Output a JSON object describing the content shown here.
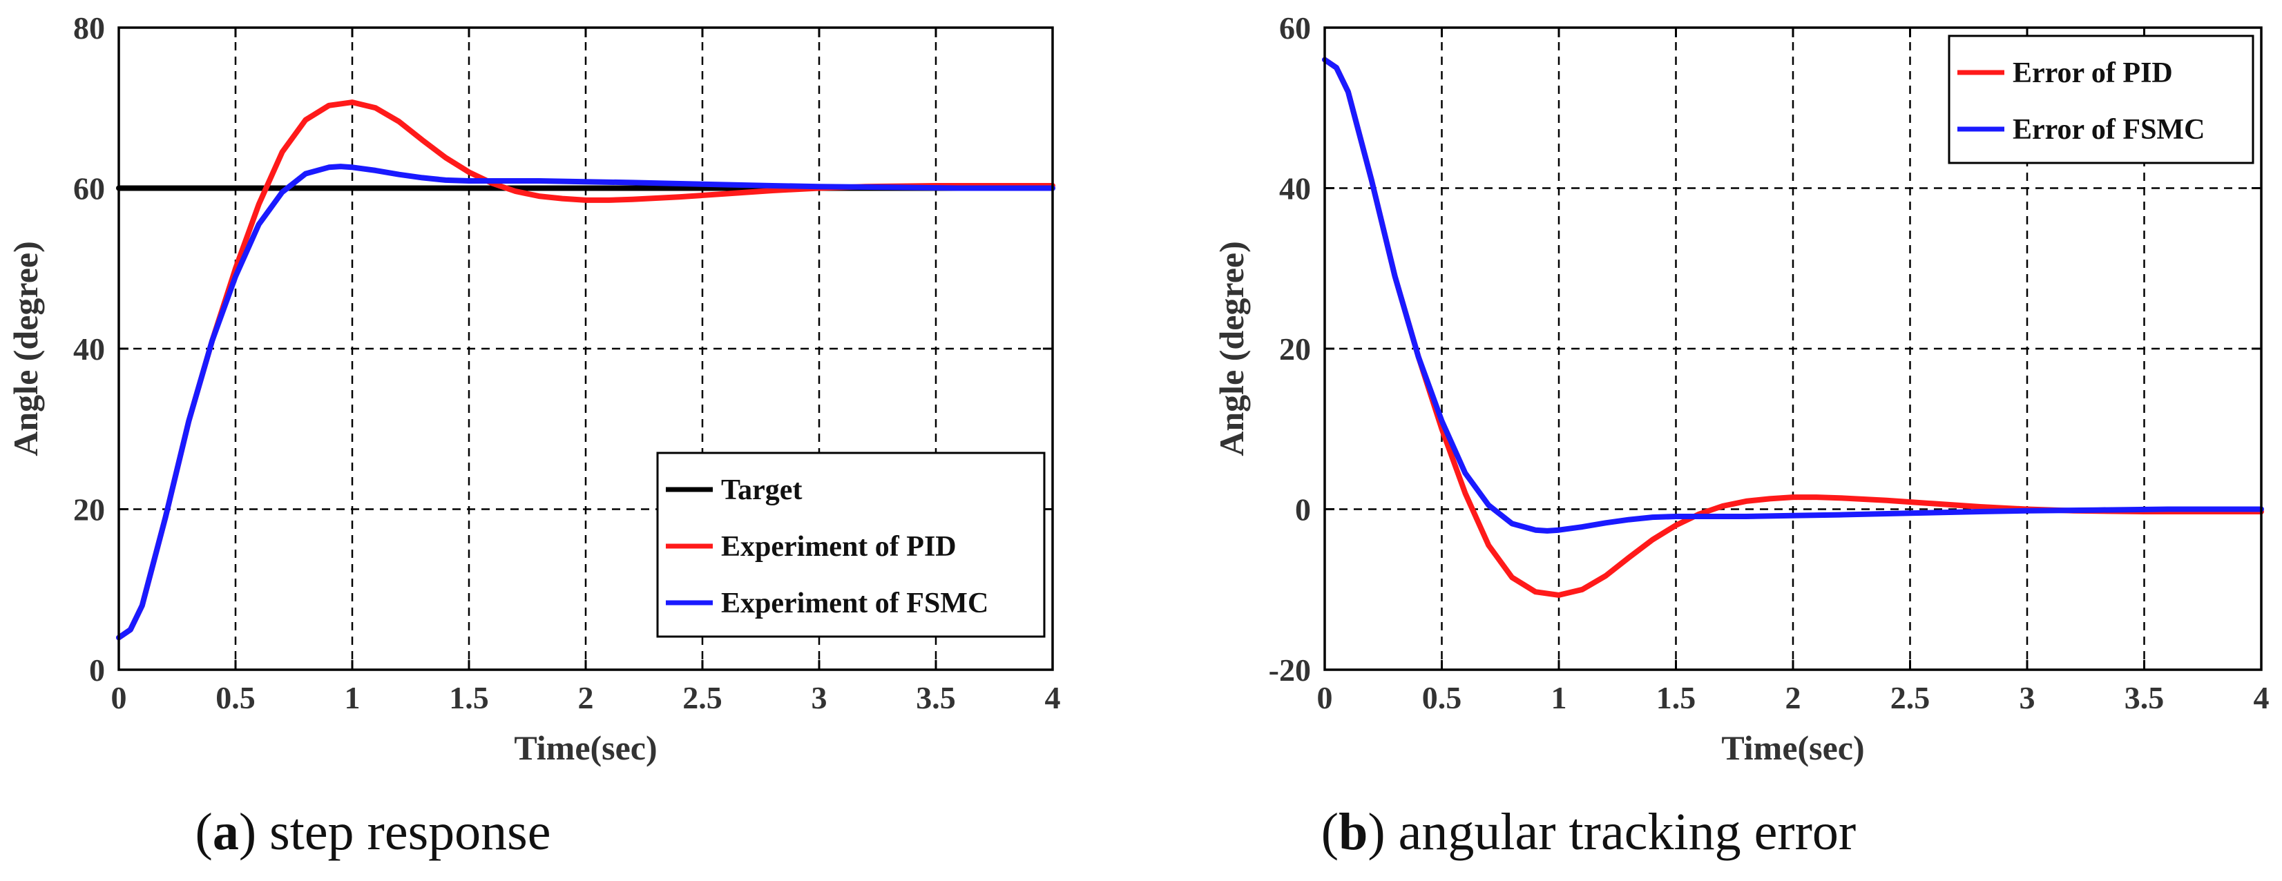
{
  "chart_data": [
    {
      "type": "line",
      "title": "",
      "xlabel": "Time(sec)",
      "ylabel": "Angle (degree)",
      "xlim": [
        0,
        4
      ],
      "ylim": [
        0,
        80
      ],
      "xticks": [
        0,
        0.5,
        1,
        1.5,
        2,
        2.5,
        3,
        3.5,
        4
      ],
      "xtick_labels": [
        "0",
        "0.5",
        "1",
        "1.5",
        "2",
        "2.5",
        "3",
        "3.5",
        "4"
      ],
      "yticks": [
        0,
        20,
        40,
        60,
        80
      ],
      "ytick_labels": [
        "0",
        "20",
        "40",
        "60",
        "80"
      ],
      "grid": true,
      "legend_position": "bottom-right",
      "series": [
        {
          "name": "Target",
          "color": "#000000",
          "x": [
            0,
            4
          ],
          "y": [
            60,
            60
          ]
        },
        {
          "name": "Experiment of PID",
          "color": "#ff1a1a",
          "x": [
            0,
            0.05,
            0.1,
            0.2,
            0.3,
            0.4,
            0.5,
            0.6,
            0.7,
            0.8,
            0.9,
            1.0,
            1.1,
            1.2,
            1.3,
            1.4,
            1.5,
            1.6,
            1.7,
            1.8,
            1.9,
            2.0,
            2.1,
            2.2,
            2.4,
            2.6,
            2.8,
            3.0,
            3.2,
            3.5,
            3.8,
            4.0
          ],
          "y": [
            4,
            5,
            8,
            19,
            31,
            41,
            50,
            58,
            64.5,
            68.5,
            70.3,
            70.7,
            70.0,
            68.3,
            66.0,
            63.8,
            62.0,
            60.6,
            59.6,
            59.0,
            58.7,
            58.5,
            58.5,
            58.6,
            58.9,
            59.3,
            59.7,
            60.0,
            60.2,
            60.3,
            60.3,
            60.3
          ]
        },
        {
          "name": "Experiment of FSMC",
          "color": "#1a1aff",
          "x": [
            0,
            0.05,
            0.1,
            0.2,
            0.3,
            0.4,
            0.5,
            0.6,
            0.7,
            0.8,
            0.9,
            0.95,
            1.0,
            1.1,
            1.2,
            1.3,
            1.4,
            1.5,
            1.6,
            1.7,
            1.8,
            2.0,
            2.2,
            2.5,
            2.8,
            3.0,
            3.3,
            3.6,
            4.0
          ],
          "y": [
            4,
            5,
            8,
            19,
            31,
            41,
            49,
            55.5,
            59.5,
            61.8,
            62.6,
            62.7,
            62.6,
            62.2,
            61.7,
            61.3,
            61.0,
            60.9,
            60.9,
            60.9,
            60.9,
            60.8,
            60.7,
            60.5,
            60.3,
            60.2,
            60.1,
            60.0,
            60.0
          ]
        }
      ]
    },
    {
      "type": "line",
      "title": "",
      "xlabel": "Time(sec)",
      "ylabel": "Angle (degree)",
      "xlim": [
        0,
        4
      ],
      "ylim": [
        -20,
        60
      ],
      "xticks": [
        0,
        0.5,
        1,
        1.5,
        2,
        2.5,
        3,
        3.5,
        4
      ],
      "xtick_labels": [
        "0",
        "0.5",
        "1",
        "1.5",
        "2",
        "2.5",
        "3",
        "3.5",
        "4"
      ],
      "yticks": [
        -20,
        0,
        20,
        40,
        60
      ],
      "ytick_labels": [
        "-20",
        "0",
        "20",
        "40",
        "60"
      ],
      "grid": true,
      "legend_position": "top-right",
      "series": [
        {
          "name": "Error of PID",
          "color": "#ff1a1a",
          "x": [
            0,
            0.05,
            0.1,
            0.2,
            0.3,
            0.4,
            0.5,
            0.6,
            0.7,
            0.8,
            0.9,
            1.0,
            1.1,
            1.2,
            1.3,
            1.4,
            1.5,
            1.6,
            1.7,
            1.8,
            1.9,
            2.0,
            2.1,
            2.2,
            2.4,
            2.6,
            2.8,
            3.0,
            3.2,
            3.5,
            3.8,
            4.0
          ],
          "y": [
            56,
            55,
            52,
            41,
            29,
            19,
            10,
            2,
            -4.5,
            -8.5,
            -10.3,
            -10.7,
            -10.0,
            -8.3,
            -6.0,
            -3.8,
            -2.0,
            -0.6,
            0.4,
            1.0,
            1.3,
            1.5,
            1.5,
            1.4,
            1.1,
            0.7,
            0.3,
            0.0,
            -0.2,
            -0.3,
            -0.3,
            -0.3
          ]
        },
        {
          "name": "Error of FSMC",
          "color": "#1a1aff",
          "x": [
            0,
            0.05,
            0.1,
            0.2,
            0.3,
            0.4,
            0.5,
            0.6,
            0.7,
            0.8,
            0.9,
            0.95,
            1.0,
            1.1,
            1.2,
            1.3,
            1.4,
            1.5,
            1.6,
            1.7,
            1.8,
            2.0,
            2.2,
            2.5,
            2.8,
            3.0,
            3.3,
            3.6,
            4.0
          ],
          "y": [
            56,
            55,
            52,
            41,
            29,
            19,
            11,
            4.5,
            0.5,
            -1.8,
            -2.6,
            -2.7,
            -2.6,
            -2.2,
            -1.7,
            -1.3,
            -1.0,
            -0.9,
            -0.9,
            -0.9,
            -0.9,
            -0.8,
            -0.7,
            -0.5,
            -0.3,
            -0.2,
            -0.1,
            0.0,
            0.0
          ]
        }
      ]
    }
  ],
  "captions": [
    {
      "letter": "a",
      "text": " step response"
    },
    {
      "letter": "b",
      "text": " angular tracking error"
    }
  ]
}
